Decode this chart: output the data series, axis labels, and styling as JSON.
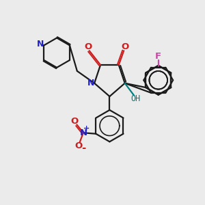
{
  "bg_color": "#ebebeb",
  "bond_color": "#1a1a1a",
  "N_color": "#2020cc",
  "O_color": "#cc2020",
  "F_color": "#cc44aa",
  "OH_color": "#008080",
  "figsize": [
    3.0,
    3.0
  ],
  "dpi": 100,
  "xlim": [
    0,
    10
  ],
  "ylim": [
    0,
    10
  ]
}
